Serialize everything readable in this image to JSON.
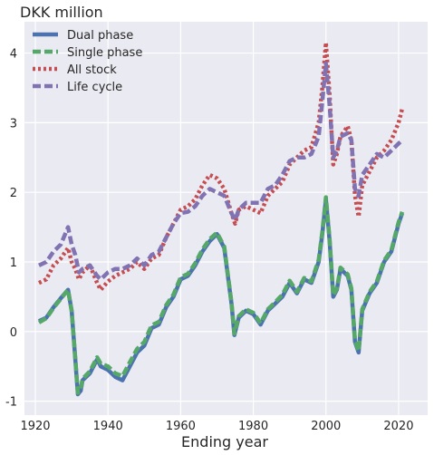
{
  "chart_data": {
    "type": "line",
    "title": "",
    "unit_label": "DKK million",
    "xlabel": "Ending year",
    "ylabel": "",
    "xlim": [
      1917,
      2028
    ],
    "ylim": [
      -1.2,
      4.45
    ],
    "x_ticks": [
      1920,
      1940,
      1960,
      1980,
      2000,
      2020
    ],
    "y_ticks": [
      -1,
      0,
      1,
      2,
      3,
      4
    ],
    "grid": true,
    "legend_position": "top-left",
    "colors": {
      "background": "#eaeaf2",
      "grid": "#ffffff",
      "dual": "#4c72b0",
      "single": "#55a868",
      "stock": "#c44e52",
      "life": "#8172b2"
    },
    "series": [
      {
        "name": "Dual phase",
        "color": "#4c72b0",
        "style": "solid",
        "x": [
          1921,
          1923,
          1925,
          1927,
          1929,
          1930,
          1931,
          1931.7,
          1932.5,
          1933,
          1935,
          1937,
          1938,
          1940,
          1942,
          1944,
          1946,
          1948,
          1950,
          1952,
          1954,
          1956,
          1958,
          1960,
          1962,
          1964,
          1966,
          1968,
          1970,
          1972,
          1974,
          1974.8,
          1976,
          1978,
          1980,
          1982,
          1984,
          1986,
          1988,
          1990,
          1992,
          1994,
          1996,
          1998,
          1999,
          2000,
          2001,
          2002,
          2003,
          2004,
          2006,
          2007,
          2008,
          2009,
          2010,
          2012,
          2014,
          2016,
          2018,
          2020,
          2021
        ],
        "y": [
          0.15,
          0.2,
          0.35,
          0.48,
          0.6,
          0.3,
          -0.4,
          -0.9,
          -0.85,
          -0.7,
          -0.6,
          -0.4,
          -0.5,
          -0.55,
          -0.65,
          -0.7,
          -0.5,
          -0.3,
          -0.2,
          0.05,
          0.1,
          0.35,
          0.5,
          0.75,
          0.8,
          0.95,
          1.15,
          1.3,
          1.4,
          1.2,
          0.4,
          -0.05,
          0.2,
          0.3,
          0.25,
          0.1,
          0.3,
          0.4,
          0.5,
          0.7,
          0.55,
          0.75,
          0.7,
          1.0,
          1.4,
          1.9,
          1.3,
          0.5,
          0.6,
          0.9,
          0.8,
          0.6,
          -0.15,
          -0.3,
          0.3,
          0.55,
          0.7,
          1.0,
          1.15,
          1.55,
          1.7
        ]
      },
      {
        "name": "Single phase",
        "color": "#55a868",
        "style": "dashed",
        "x": [
          1921,
          1923,
          1925,
          1927,
          1929,
          1930,
          1931,
          1931.7,
          1932.5,
          1933,
          1935,
          1937,
          1938,
          1940,
          1942,
          1944,
          1946,
          1948,
          1950,
          1952,
          1954,
          1956,
          1958,
          1960,
          1962,
          1964,
          1966,
          1968,
          1970,
          1972,
          1974,
          1974.8,
          1976,
          1978,
          1980,
          1982,
          1984,
          1986,
          1988,
          1990,
          1992,
          1994,
          1996,
          1998,
          1999,
          2000,
          2001,
          2002,
          2003,
          2004,
          2006,
          2007,
          2008,
          2009,
          2010,
          2012,
          2014,
          2016,
          2018,
          2020,
          2021
        ],
        "y": [
          0.13,
          0.19,
          0.34,
          0.47,
          0.6,
          0.29,
          -0.38,
          -0.88,
          -0.82,
          -0.68,
          -0.57,
          -0.37,
          -0.46,
          -0.5,
          -0.6,
          -0.64,
          -0.44,
          -0.25,
          -0.15,
          0.09,
          0.14,
          0.38,
          0.53,
          0.78,
          0.83,
          0.98,
          1.18,
          1.33,
          1.42,
          1.22,
          0.42,
          -0.03,
          0.22,
          0.32,
          0.27,
          0.12,
          0.32,
          0.42,
          0.53,
          0.73,
          0.57,
          0.77,
          0.72,
          1.03,
          1.43,
          1.93,
          1.33,
          0.52,
          0.62,
          0.92,
          0.82,
          0.62,
          -0.13,
          -0.28,
          0.32,
          0.57,
          0.72,
          1.02,
          1.17,
          1.57,
          1.72
        ]
      },
      {
        "name": "All stock",
        "color": "#c44e52",
        "style": "dotted",
        "x": [
          1921,
          1923,
          1925,
          1927,
          1929,
          1930,
          1931,
          1932,
          1933,
          1935,
          1937,
          1938,
          1940,
          1942,
          1944,
          1946,
          1948,
          1950,
          1952,
          1954,
          1956,
          1958,
          1960,
          1962,
          1964,
          1966,
          1968,
          1970,
          1972,
          1974,
          1975,
          1976,
          1978,
          1980,
          1982,
          1984,
          1986,
          1988,
          1990,
          1992,
          1994,
          1996,
          1998,
          1999,
          2000,
          2001,
          2002,
          2003,
          2004,
          2006,
          2007,
          2008,
          2009,
          2010,
          2012,
          2014,
          2016,
          2018,
          2020,
          2021
        ],
        "y": [
          0.7,
          0.75,
          0.95,
          1.05,
          1.2,
          1.0,
          0.9,
          0.75,
          0.85,
          0.95,
          0.7,
          0.6,
          0.72,
          0.8,
          0.85,
          0.9,
          1.0,
          0.9,
          1.05,
          1.1,
          1.35,
          1.55,
          1.75,
          1.8,
          1.9,
          2.1,
          2.25,
          2.2,
          2.05,
          1.7,
          1.55,
          1.75,
          1.8,
          1.75,
          1.7,
          1.95,
          2.05,
          2.15,
          2.4,
          2.5,
          2.6,
          2.65,
          3.0,
          3.5,
          4.15,
          3.4,
          2.4,
          2.55,
          2.8,
          2.95,
          2.75,
          1.95,
          1.65,
          2.1,
          2.3,
          2.5,
          2.6,
          2.75,
          3.0,
          3.2
        ]
      },
      {
        "name": "Life cycle",
        "color": "#8172b2",
        "style": "dashed",
        "x": [
          1921,
          1923,
          1925,
          1927,
          1929,
          1930,
          1931,
          1932,
          1933,
          1935,
          1937,
          1938,
          1940,
          1942,
          1944,
          1946,
          1948,
          1950,
          1952,
          1954,
          1956,
          1958,
          1960,
          1962,
          1964,
          1966,
          1968,
          1970,
          1972,
          1974,
          1975,
          1976,
          1978,
          1980,
          1982,
          1984,
          1986,
          1988,
          1990,
          1992,
          1994,
          1996,
          1998,
          1999,
          2000,
          2001,
          2002,
          2003,
          2004,
          2006,
          2007,
          2008,
          2009,
          2010,
          2012,
          2014,
          2016,
          2018,
          2020,
          2021
        ],
        "y": [
          0.95,
          1.0,
          1.15,
          1.25,
          1.5,
          1.25,
          1.1,
          0.85,
          0.9,
          0.95,
          0.8,
          0.75,
          0.85,
          0.9,
          0.9,
          0.95,
          1.05,
          0.95,
          1.1,
          1.15,
          1.35,
          1.55,
          1.7,
          1.72,
          1.8,
          1.95,
          2.05,
          2.0,
          1.95,
          1.7,
          1.6,
          1.75,
          1.85,
          1.85,
          1.85,
          2.05,
          2.1,
          2.25,
          2.45,
          2.5,
          2.5,
          2.55,
          2.8,
          3.3,
          3.85,
          3.25,
          2.5,
          2.6,
          2.8,
          2.85,
          2.75,
          2.05,
          1.95,
          2.25,
          2.4,
          2.55,
          2.5,
          2.6,
          2.7,
          2.75
        ]
      }
    ]
  }
}
